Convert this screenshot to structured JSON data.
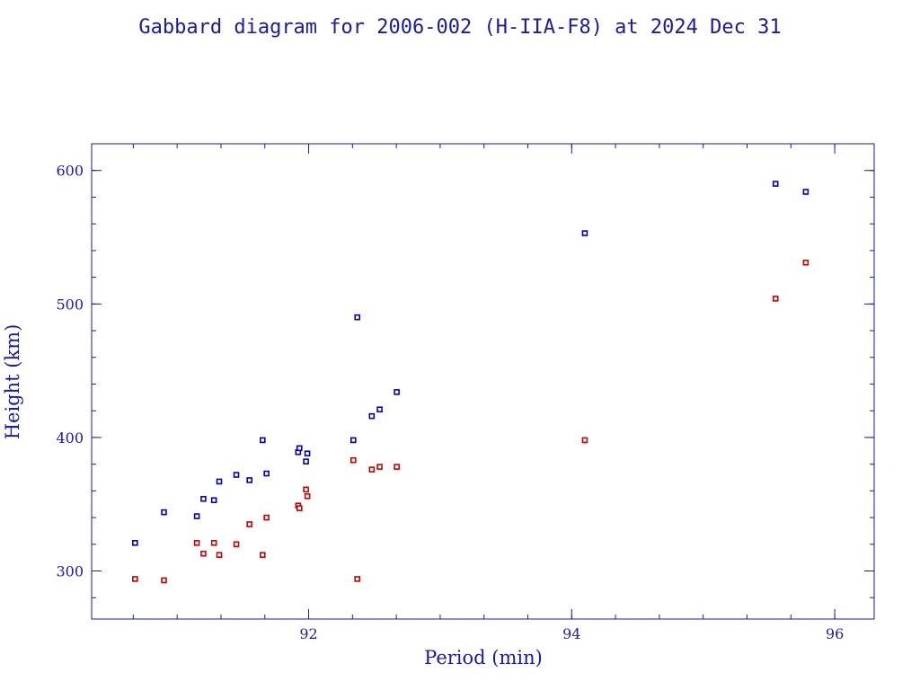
{
  "chart_data": {
    "type": "scatter",
    "title": "Gabbard diagram for 2006-002 (H-IIA-F8) at 2024 Dec 31",
    "xlabel": "Period (min)",
    "ylabel": "Height (km)",
    "xlim": [
      90.35,
      96.3
    ],
    "ylim": [
      264,
      620
    ],
    "xticks": [
      92,
      94,
      96
    ],
    "xtick_labels": [
      "92",
      "94",
      "96"
    ],
    "yticks": [
      300,
      400,
      500,
      600
    ],
    "ytick_labels": [
      "300",
      "400",
      "500",
      "600"
    ],
    "x_minor_step": 0.333333,
    "y_minor_step": 20,
    "grid": false,
    "legend": "none",
    "colors": {
      "text": "#1a1aa6",
      "apogee": "#0000cc",
      "perigee": "#cc0000"
    },
    "series": [
      {
        "role": "apogee",
        "color": "#0000cc",
        "points": [
          [
            90.68,
            321
          ],
          [
            90.9,
            344
          ],
          [
            91.15,
            341
          ],
          [
            91.2,
            354
          ],
          [
            91.28,
            353
          ],
          [
            91.32,
            367
          ],
          [
            91.45,
            372
          ],
          [
            91.55,
            368
          ],
          [
            91.65,
            398
          ],
          [
            91.68,
            373
          ],
          [
            91.92,
            389
          ],
          [
            91.93,
            392
          ],
          [
            91.98,
            382
          ],
          [
            91.99,
            388
          ],
          [
            92.34,
            398
          ],
          [
            92.37,
            490
          ],
          [
            92.48,
            416
          ],
          [
            92.54,
            421
          ],
          [
            92.67,
            434
          ],
          [
            94.1,
            553
          ],
          [
            95.55,
            590
          ],
          [
            95.78,
            584
          ]
        ]
      },
      {
        "role": "perigee",
        "color": "#cc0000",
        "points": [
          [
            90.68,
            294
          ],
          [
            90.9,
            293
          ],
          [
            91.15,
            321
          ],
          [
            91.2,
            313
          ],
          [
            91.28,
            321
          ],
          [
            91.32,
            312
          ],
          [
            91.45,
            320
          ],
          [
            91.55,
            335
          ],
          [
            91.65,
            312
          ],
          [
            91.68,
            340
          ],
          [
            91.92,
            349
          ],
          [
            91.93,
            347
          ],
          [
            91.98,
            361
          ],
          [
            91.99,
            356
          ],
          [
            92.34,
            383
          ],
          [
            92.37,
            294
          ],
          [
            92.48,
            376
          ],
          [
            92.54,
            378
          ],
          [
            92.67,
            378
          ],
          [
            94.1,
            398
          ],
          [
            95.55,
            504
          ],
          [
            95.78,
            531
          ]
        ]
      }
    ]
  }
}
